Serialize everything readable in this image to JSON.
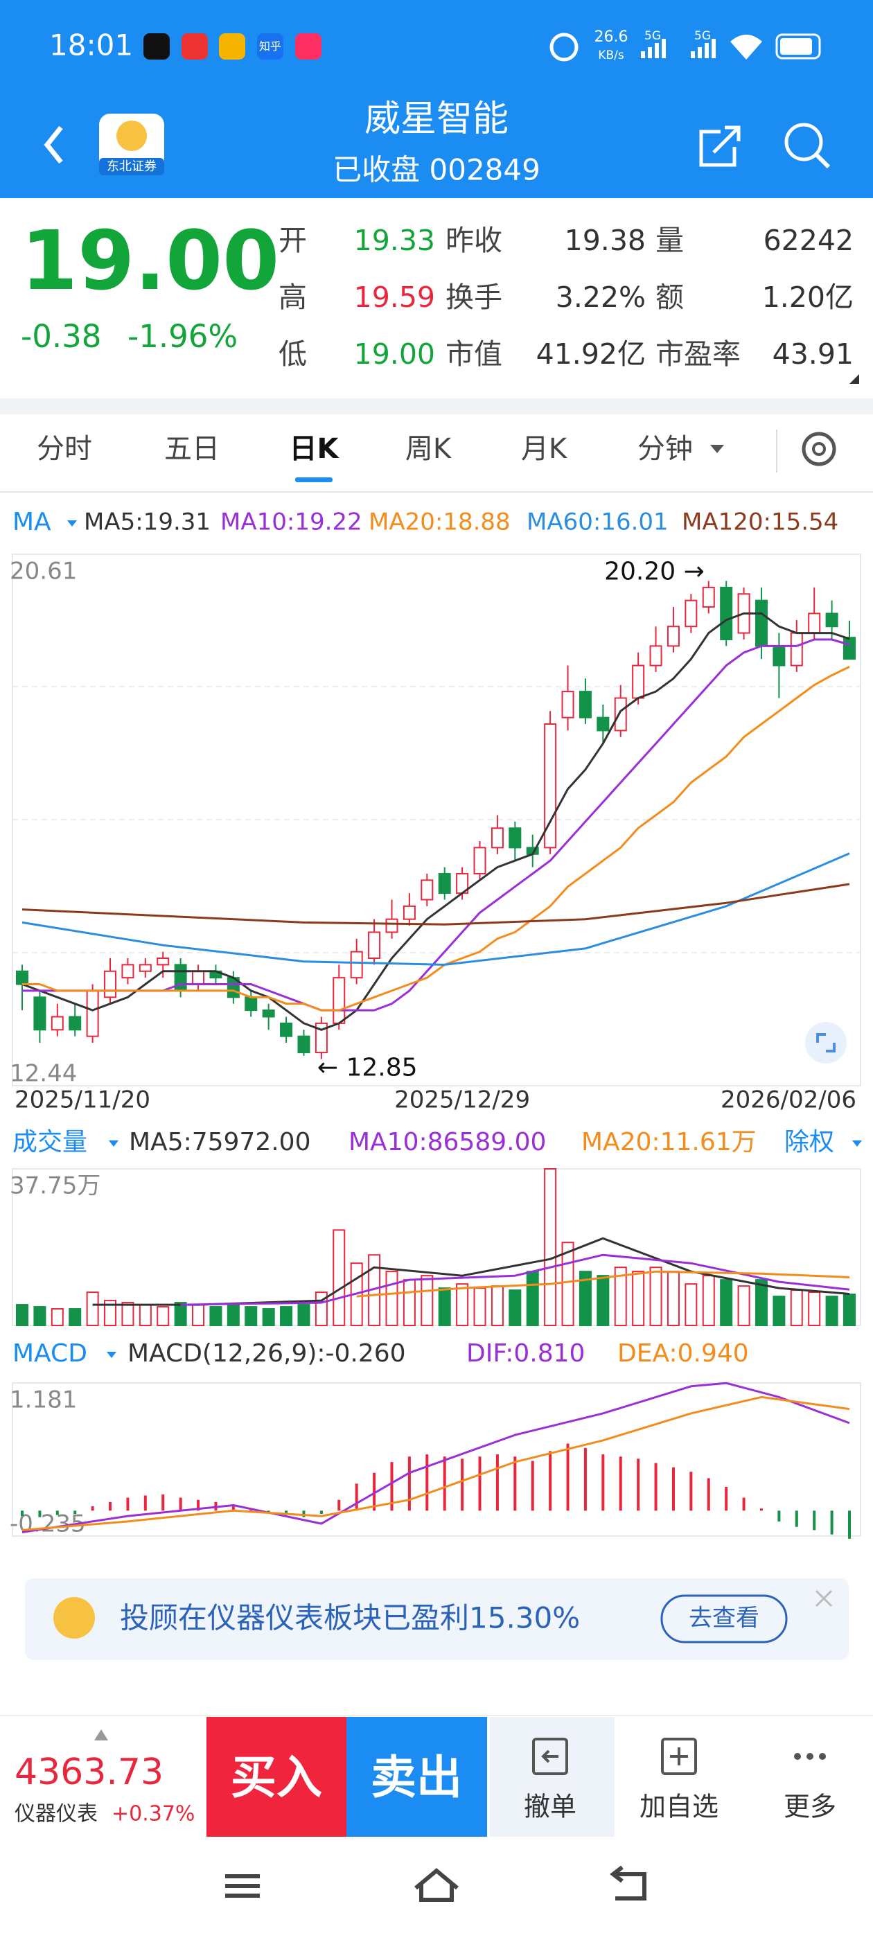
{
  "status_bar": {
    "time": "18:01",
    "app_text": "知乎",
    "speed": "26.6",
    "speed_unit": "KB/s",
    "net": [
      "5G",
      "5G"
    ]
  },
  "header": {
    "title": "威星智能",
    "subtitle": "已收盘 002849",
    "logo_text": "东北证券"
  },
  "quote": {
    "price": "19.00",
    "change": "-0.38",
    "change_pct": "-1.96%",
    "color": "#12a53a",
    "fields": [
      {
        "label": "开",
        "value": "19.33",
        "color": "#12a53a"
      },
      {
        "label": "昨收",
        "value": "19.38",
        "color": "#333333"
      },
      {
        "label": "量",
        "value": "62242",
        "color": "#333333"
      },
      {
        "label": "高",
        "value": "19.59",
        "color": "#e8273c"
      },
      {
        "label": "换手",
        "value": "3.22%",
        "color": "#333333"
      },
      {
        "label": "额",
        "value": "1.20亿",
        "color": "#333333"
      },
      {
        "label": "低",
        "value": "19.00",
        "color": "#12a53a"
      },
      {
        "label": "市值",
        "value": "41.92亿",
        "color": "#333333"
      },
      {
        "label": "市盈率",
        "value": "43.91",
        "color": "#333333"
      }
    ]
  },
  "tabs": {
    "items": [
      "分时",
      "五日",
      "日K",
      "周K",
      "月K",
      "分钟"
    ],
    "active": 2
  },
  "kline": {
    "type": "candlestick",
    "legend_title": "MA",
    "up_color": "#e8273c",
    "down_color": "#13934a",
    "ylim": [
      12.44,
      20.61
    ],
    "yticks": [
      20.61,
      12.44
    ],
    "dates": [
      {
        "index": 0,
        "label": "2025/11/20"
      },
      {
        "index": 25,
        "label": "2025/12/29"
      },
      {
        "index": 47,
        "label": "2026/02/06"
      }
    ],
    "annotations": [
      {
        "label": "20.20 →",
        "index": 39,
        "value": 20.2,
        "side": "left"
      },
      {
        "label": "← 12.85",
        "index": 17,
        "value": 12.85,
        "side": "right"
      }
    ],
    "candles": [
      {
        "open": 14.2,
        "close": 14.0,
        "high": 14.3,
        "low": 13.6
      },
      {
        "open": 13.8,
        "close": 13.3,
        "high": 13.9,
        "low": 13.1
      },
      {
        "open": 13.3,
        "close": 13.5,
        "high": 13.7,
        "low": 13.2
      },
      {
        "open": 13.5,
        "close": 13.3,
        "high": 13.7,
        "low": 13.2
      },
      {
        "open": 13.2,
        "close": 13.9,
        "high": 14.0,
        "low": 13.1
      },
      {
        "open": 13.8,
        "close": 14.2,
        "high": 14.4,
        "low": 13.7
      },
      {
        "open": 14.1,
        "close": 14.3,
        "high": 14.4,
        "low": 14.0
      },
      {
        "open": 14.2,
        "close": 14.3,
        "high": 14.4,
        "low": 14.1
      },
      {
        "open": 14.3,
        "close": 14.4,
        "high": 14.5,
        "low": 14.1
      },
      {
        "open": 14.3,
        "close": 13.9,
        "high": 14.4,
        "low": 13.8
      },
      {
        "open": 14.0,
        "close": 14.2,
        "high": 14.3,
        "low": 13.9
      },
      {
        "open": 14.2,
        "close": 14.1,
        "high": 14.3,
        "low": 14.0
      },
      {
        "open": 14.1,
        "close": 13.8,
        "high": 14.2,
        "low": 13.7
      },
      {
        "open": 13.8,
        "close": 13.6,
        "high": 13.9,
        "low": 13.5
      },
      {
        "open": 13.6,
        "close": 13.5,
        "high": 13.7,
        "low": 13.3
      },
      {
        "open": 13.4,
        "close": 13.2,
        "high": 13.5,
        "low": 13.1
      },
      {
        "open": 13.2,
        "close": 12.95,
        "high": 13.3,
        "low": 12.9
      },
      {
        "open": 12.95,
        "close": 13.4,
        "high": 13.5,
        "low": 12.85
      },
      {
        "open": 13.4,
        "close": 14.1,
        "high": 14.3,
        "low": 13.3
      },
      {
        "open": 14.1,
        "close": 14.5,
        "high": 14.7,
        "low": 14.0
      },
      {
        "open": 14.4,
        "close": 14.8,
        "high": 15.0,
        "low": 14.3
      },
      {
        "open": 14.8,
        "close": 15.0,
        "high": 15.3,
        "low": 14.7
      },
      {
        "open": 15.0,
        "close": 15.2,
        "high": 15.4,
        "low": 14.9
      },
      {
        "open": 15.3,
        "close": 15.6,
        "high": 15.7,
        "low": 15.2
      },
      {
        "open": 15.7,
        "close": 15.4,
        "high": 15.8,
        "low": 15.3
      },
      {
        "open": 15.4,
        "close": 15.7,
        "high": 15.8,
        "low": 15.3
      },
      {
        "open": 15.7,
        "close": 16.1,
        "high": 16.2,
        "low": 15.6
      },
      {
        "open": 16.1,
        "close": 16.4,
        "high": 16.6,
        "low": 16.0
      },
      {
        "open": 16.4,
        "close": 16.1,
        "high": 16.5,
        "low": 15.9
      },
      {
        "open": 16.1,
        "close": 16.0,
        "high": 16.3,
        "low": 15.8
      },
      {
        "open": 16.1,
        "close": 18.0,
        "high": 18.2,
        "low": 16.0
      },
      {
        "open": 18.1,
        "close": 18.5,
        "high": 18.9,
        "low": 17.9
      },
      {
        "open": 18.5,
        "close": 18.1,
        "high": 18.7,
        "low": 18.0
      },
      {
        "open": 18.1,
        "close": 17.9,
        "high": 18.3,
        "low": 17.7
      },
      {
        "open": 17.9,
        "close": 18.4,
        "high": 18.6,
        "low": 17.8
      },
      {
        "open": 18.4,
        "close": 18.9,
        "high": 19.1,
        "low": 18.3
      },
      {
        "open": 18.9,
        "close": 19.2,
        "high": 19.5,
        "low": 18.8
      },
      {
        "open": 19.2,
        "close": 19.5,
        "high": 19.8,
        "low": 19.1
      },
      {
        "open": 19.5,
        "close": 19.9,
        "high": 20.0,
        "low": 19.4
      },
      {
        "open": 19.8,
        "close": 20.1,
        "high": 20.2,
        "low": 19.7
      },
      {
        "open": 20.1,
        "close": 19.3,
        "high": 20.2,
        "low": 19.2
      },
      {
        "open": 19.4,
        "close": 20.0,
        "high": 20.1,
        "low": 19.3
      },
      {
        "open": 19.9,
        "close": 19.2,
        "high": 20.1,
        "low": 19.0
      },
      {
        "open": 19.2,
        "close": 18.9,
        "high": 19.4,
        "low": 18.4
      },
      {
        "open": 18.9,
        "close": 19.4,
        "high": 19.6,
        "low": 18.8
      },
      {
        "open": 19.4,
        "close": 19.7,
        "high": 20.1,
        "low": 19.3
      },
      {
        "open": 19.7,
        "close": 19.5,
        "high": 19.9,
        "low": 19.3
      },
      {
        "open": 19.33,
        "close": 19.0,
        "high": 19.59,
        "low": 19.0
      }
    ],
    "ma": [
      {
        "label": "MA5:19.31",
        "color": "#333333",
        "values": [
          14.0,
          13.9,
          13.8,
          13.7,
          13.6,
          13.7,
          13.8,
          14.0,
          14.2,
          14.2,
          14.2,
          14.2,
          14.1,
          13.9,
          13.8,
          13.6,
          13.4,
          13.3,
          13.4,
          13.6,
          14.0,
          14.4,
          14.7,
          15.0,
          15.2,
          15.4,
          15.6,
          15.8,
          15.9,
          16.0,
          16.5,
          17.0,
          17.3,
          17.7,
          18.2,
          18.4,
          18.5,
          18.7,
          19.0,
          19.4,
          19.6,
          19.7,
          19.7,
          19.5,
          19.4,
          19.4,
          19.4,
          19.31
        ]
      },
      {
        "label": "MA10:19.22",
        "color": "#9b2fd6",
        "values": [
          13.9,
          13.9,
          13.9,
          13.9,
          13.9,
          13.9,
          13.9,
          13.9,
          13.9,
          14.0,
          14.0,
          14.0,
          14.0,
          14.0,
          13.9,
          13.8,
          13.7,
          13.6,
          13.6,
          13.6,
          13.6,
          13.7,
          13.9,
          14.2,
          14.5,
          14.8,
          15.1,
          15.3,
          15.5,
          15.7,
          15.9,
          16.2,
          16.5,
          16.8,
          17.1,
          17.4,
          17.7,
          18.0,
          18.3,
          18.6,
          18.9,
          19.1,
          19.2,
          19.2,
          19.2,
          19.3,
          19.3,
          19.22
        ]
      },
      {
        "label": "MA20:18.88",
        "color": "#f28c1c",
        "values": [
          14.0,
          14.0,
          13.9,
          13.9,
          13.9,
          13.9,
          13.9,
          13.9,
          13.9,
          13.9,
          13.9,
          13.9,
          13.9,
          13.8,
          13.8,
          13.7,
          13.7,
          13.6,
          13.6,
          13.7,
          13.8,
          13.9,
          14.0,
          14.1,
          14.3,
          14.4,
          14.5,
          14.7,
          14.8,
          15.0,
          15.2,
          15.5,
          15.7,
          15.9,
          16.1,
          16.4,
          16.6,
          16.8,
          17.1,
          17.3,
          17.5,
          17.8,
          18.0,
          18.2,
          18.4,
          18.6,
          18.75,
          18.88
        ]
      },
      {
        "label": "MA60:16.01",
        "color": "#2b8de0",
        "x": [
          0,
          8,
          16,
          24,
          32,
          40,
          47
        ],
        "values": [
          14.95,
          14.6,
          14.35,
          14.3,
          14.55,
          15.2,
          16.01
        ]
      },
      {
        "label": "MA120:15.54",
        "color": "#8b3a1c",
        "x": [
          0,
          8,
          16,
          24,
          32,
          40,
          47
        ],
        "values": [
          15.15,
          15.05,
          14.95,
          14.92,
          15.0,
          15.25,
          15.54
        ]
      }
    ]
  },
  "volume": {
    "type": "bar",
    "legend_title": "成交量",
    "extra_label": "除权",
    "ylim": [
      0,
      377500
    ],
    "yticks": [
      {
        "value": 377500,
        "label": "37.75万"
      }
    ],
    "values": [
      50000,
      45000,
      40000,
      40000,
      80000,
      60000,
      55000,
      50000,
      45000,
      55000,
      50000,
      45000,
      50000,
      45000,
      40000,
      45000,
      50000,
      80000,
      230000,
      150000,
      170000,
      130000,
      110000,
      120000,
      90000,
      100000,
      90000,
      95000,
      85000,
      130000,
      377500,
      200000,
      130000,
      120000,
      140000,
      130000,
      140000,
      130000,
      100000,
      120000,
      110000,
      95000,
      110000,
      70000,
      85000,
      80000,
      70000,
      75000
    ],
    "ma": [
      {
        "label": "MA5:75972.00",
        "color": "#333333",
        "x": [
          4,
          10,
          17,
          20,
          25,
          30,
          33,
          38,
          43,
          47
        ],
        "values": [
          50000,
          50000,
          60000,
          140000,
          120000,
          160000,
          210000,
          130000,
          90000,
          75972
        ]
      },
      {
        "label": "MA10:86589.00",
        "color": "#9b2fd6",
        "x": [
          9,
          17,
          22,
          28,
          33,
          38,
          43,
          47
        ],
        "values": [
          50000,
          55000,
          110000,
          120000,
          170000,
          150000,
          105000,
          86589
        ]
      },
      {
        "label": "MA20:11.61万",
        "color": "#f28c1c",
        "x": [
          19,
          25,
          30,
          36,
          42,
          47
        ],
        "values": [
          70000,
          90000,
          100000,
          130000,
          125000,
          116100
        ]
      }
    ]
  },
  "macd": {
    "type": "bar",
    "legend_title": "MACD",
    "label": "MACD(12,26,9):-0.260",
    "ylim": [
      -0.235,
      1.181
    ],
    "yticks": [
      1.181,
      -0.235
    ],
    "values": [
      -0.05,
      -0.06,
      -0.04,
      -0.03,
      0.04,
      0.08,
      0.12,
      0.14,
      0.15,
      0.12,
      0.1,
      0.08,
      0.05,
      0.02,
      -0.02,
      -0.04,
      -0.06,
      -0.03,
      0.1,
      0.25,
      0.35,
      0.45,
      0.5,
      0.52,
      0.5,
      0.48,
      0.5,
      0.52,
      0.5,
      0.46,
      0.55,
      0.62,
      0.58,
      0.52,
      0.5,
      0.48,
      0.44,
      0.4,
      0.36,
      0.3,
      0.22,
      0.12,
      0.02,
      -0.1,
      -0.15,
      -0.18,
      -0.22,
      -0.26
    ],
    "lines": [
      {
        "label": "DIF:0.810",
        "color": "#9b2fd6",
        "x": [
          0,
          6,
          12,
          17,
          22,
          28,
          33,
          38,
          40,
          43,
          47
        ],
        "values": [
          -0.2,
          -0.05,
          0.05,
          -0.12,
          0.35,
          0.7,
          0.9,
          1.15,
          1.18,
          1.05,
          0.81
        ]
      },
      {
        "label": "DEA:0.940",
        "color": "#f28c1c",
        "x": [
          0,
          6,
          12,
          17,
          22,
          28,
          33,
          38,
          42,
          47
        ],
        "values": [
          -0.18,
          -0.1,
          0.0,
          -0.05,
          0.1,
          0.45,
          0.65,
          0.9,
          1.05,
          0.94
        ]
      }
    ]
  },
  "banner": {
    "text": "投顾在仪器仪表板块已盈利15.30%",
    "button": "去查看"
  },
  "bottom": {
    "index_value": "4363.73",
    "index_name": "仪器仪表",
    "index_change": "+0.37%",
    "buy": "买入",
    "sell": "卖出",
    "actions": [
      "撤单",
      "加自选",
      "更多"
    ]
  }
}
